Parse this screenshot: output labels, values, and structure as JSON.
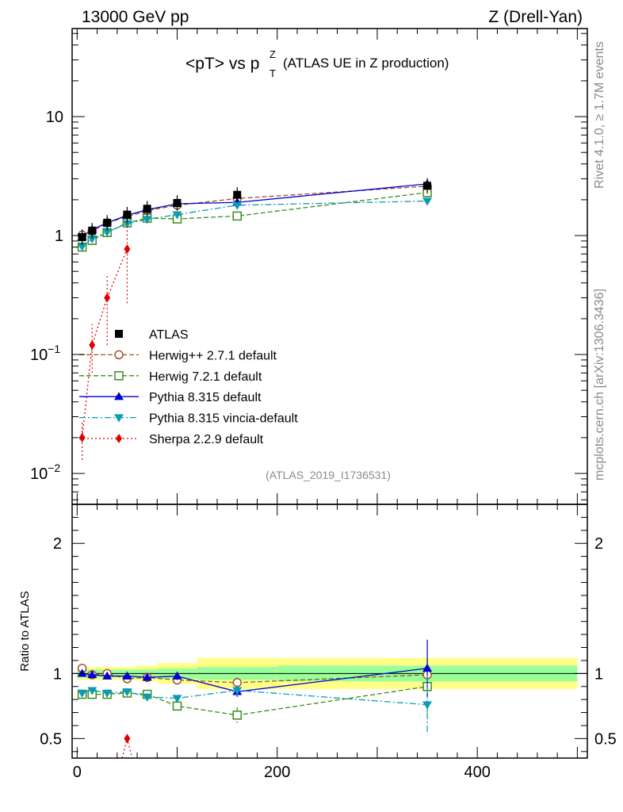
{
  "header": {
    "left": "13000 GeV pp",
    "right": "Z (Drell-Yan)"
  },
  "title": {
    "main": "<pT> vs p",
    "sup": "Z",
    "sub": "T",
    "paren": "(ATLAS UE in Z production)"
  },
  "side": {
    "rivet": "Rivet 4.1.0, ≥ 1.7M events",
    "mcplots": "mcplots.cern.ch [arXiv:1306.3436]"
  },
  "analysis_id": "(ATLAS_2019_I1736531)",
  "ratio_ylabel": "Ratio to ATLAS",
  "chart_data": {
    "type": "scatter",
    "x": [
      5,
      15,
      30,
      50,
      70,
      100,
      160,
      350
    ],
    "x_edges": [
      0,
      10,
      20,
      40,
      60,
      80,
      120,
      200,
      500
    ],
    "xlim": [
      -5,
      510
    ],
    "main": {
      "yscale": "log",
      "ylim": [
        0.0055,
        55
      ],
      "yticks": [
        {
          "v": 0.01,
          "base": "10",
          "exp": "−2"
        },
        {
          "v": 0.1,
          "base": "10",
          "exp": "−1"
        },
        {
          "v": 1,
          "base": "1",
          "exp": ""
        },
        {
          "v": 10,
          "base": "10",
          "exp": ""
        }
      ]
    },
    "ratio": {
      "yscale": "linear",
      "ylim": [
        0.35,
        2.3
      ],
      "yticks": [
        {
          "v": 0.5,
          "label": "0.5"
        },
        {
          "v": 1,
          "label": "1"
        },
        {
          "v": 2,
          "label": "2"
        }
      ]
    },
    "xticks": [
      {
        "v": 0,
        "label": "0"
      },
      {
        "v": 200,
        "label": "200"
      },
      {
        "v": 400,
        "label": "400"
      }
    ],
    "data": {
      "name": "ATLAS",
      "values": [
        0.97,
        1.1,
        1.28,
        1.5,
        1.68,
        1.88,
        2.2,
        2.62
      ],
      "band_inner": [
        0.03,
        0.03,
        0.03,
        0.03,
        0.03,
        0.04,
        0.05,
        0.06
      ],
      "band_outer": [
        0.05,
        0.05,
        0.05,
        0.05,
        0.06,
        0.08,
        0.12,
        0.12
      ]
    },
    "series": [
      {
        "name": "Herwig++ 2.7.1 default",
        "color": "#a0522d",
        "marker": "circle-open",
        "dash": "6,3",
        "values": [
          1.01,
          1.09,
          1.28,
          1.44,
          1.62,
          1.8,
          2.05,
          2.6
        ],
        "ratio": [
          1.04,
          0.99,
          1.0,
          0.96,
          0.97,
          0.95,
          0.93,
          0.99
        ],
        "ratio_err": [
          0.01,
          0.01,
          0.01,
          0.01,
          0.01,
          0.02,
          0.04,
          0.1
        ]
      },
      {
        "name": "Herwig 7.2.1 default",
        "color": "#3a8d1a",
        "marker": "square-open",
        "dash": "6,3",
        "values": [
          0.8,
          0.91,
          1.06,
          1.28,
          1.4,
          1.38,
          1.46,
          2.3
        ],
        "ratio": [
          0.84,
          0.84,
          0.84,
          0.85,
          0.84,
          0.75,
          0.68,
          0.9
        ],
        "ratio_err": [
          0.01,
          0.01,
          0.01,
          0.01,
          0.01,
          0.02,
          0.06,
          0.22
        ]
      },
      {
        "name": "Pythia 8.315 default",
        "color": "#0000d0",
        "marker": "triangle-up",
        "dash": "",
        "values": [
          0.98,
          1.12,
          1.28,
          1.48,
          1.65,
          1.85,
          1.9,
          2.72
        ],
        "ratio": [
          1.0,
          0.99,
          0.98,
          0.98,
          0.97,
          0.98,
          0.86,
          1.04
        ],
        "ratio_err": [
          0.01,
          0.01,
          0.01,
          0.01,
          0.01,
          0.03,
          0.04,
          0.22
        ]
      },
      {
        "name": "Pythia 8.315 vincia-default",
        "color": "#0a9cb5",
        "marker": "triangle-down",
        "dash": "8,3,2,3",
        "values": [
          0.81,
          0.94,
          1.07,
          1.26,
          1.37,
          1.5,
          1.8,
          1.95
        ],
        "ratio": [
          0.85,
          0.87,
          0.85,
          0.86,
          0.82,
          0.81,
          0.87,
          0.76
        ],
        "ratio_err": [
          0.01,
          0.01,
          0.01,
          0.01,
          0.02,
          0.02,
          0.04,
          0.23
        ]
      },
      {
        "name": "Sherpa 2.2.9 default",
        "color": "#e00000",
        "marker": "diamond",
        "dash": "2,3",
        "values": [
          0.02,
          0.12,
          0.3,
          0.77,
          null,
          null,
          null,
          null
        ],
        "ratio": [
          null,
          null,
          null,
          0.5,
          null,
          null,
          null,
          null
        ],
        "ratio_err": [
          0,
          0,
          0,
          0,
          0,
          0,
          0,
          0
        ]
      }
    ]
  }
}
